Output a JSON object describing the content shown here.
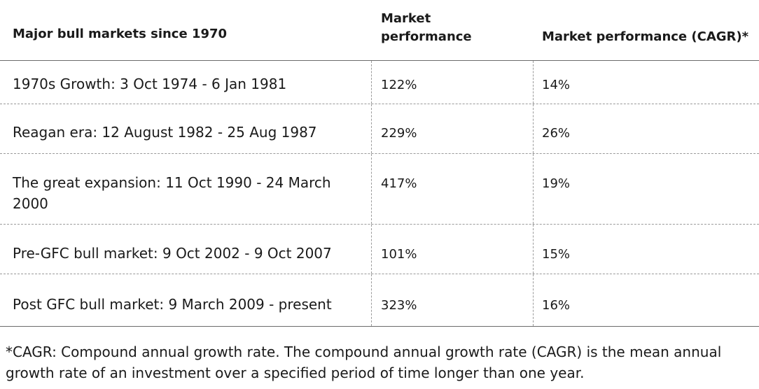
{
  "table": {
    "headers": [
      "Major bull markets since 1970",
      "Market performance",
      "Market performance (CAGR)*"
    ],
    "rows": [
      {
        "period": "1970s Growth: 3 Oct 1974 - 6 Jan 1981",
        "performance": "122%",
        "cagr": "14%"
      },
      {
        "period": "Reagan era: 12 August 1982 - 25 Aug 1987",
        "performance": "229%",
        "cagr": "26%"
      },
      {
        "period": "The great expansion: 11 Oct 1990 - 24 March 2000",
        "performance": "417%",
        "cagr": "19%"
      },
      {
        "period": "Pre-GFC bull market: 9 Oct 2002 - 9 Oct 2007",
        "performance": "101%",
        "cagr": "15%"
      },
      {
        "period": "Post GFC bull market: 9 March 2009 - present",
        "performance": "323%",
        "cagr": "16%"
      }
    ]
  },
  "footnote": "*CAGR: Compound annual growth rate. The compound annual growth rate (CAGR) is the mean annual growth rate of an investment over a specified period of time longer than one year."
}
